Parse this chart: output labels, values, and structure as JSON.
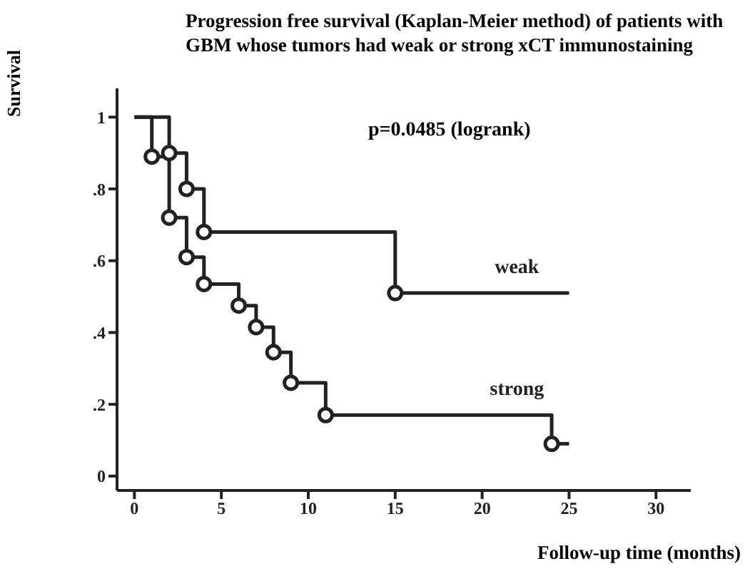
{
  "chart_data": {
    "type": "step",
    "title": "Progression free survival (Kaplan-Meier method) of patients with GBM whose tumors had weak or strong xCT immunostaining",
    "xlabel": "Follow-up time (months)",
    "ylabel": "Survival",
    "annotations": [
      "p=0.0485 (logrank)"
    ],
    "series": [
      {
        "name": "weak",
        "color": "#222222",
        "marker": "none",
        "x": [
          0,
          2,
          3,
          4,
          15,
          25
        ],
        "values": [
          1,
          0.9,
          0.8,
          0.68,
          0.51,
          0.51
        ]
      },
      {
        "name": "strong",
        "color": "#222222",
        "marker": "none",
        "x": [
          0,
          1,
          2,
          3,
          4,
          6,
          7,
          8,
          9,
          11,
          24,
          25
        ],
        "values": [
          1,
          0.89,
          0.72,
          0.61,
          0.535,
          0.475,
          0.415,
          0.345,
          0.26,
          0.17,
          0.09,
          0.09
        ]
      },
      {
        "type": "scatter",
        "color": "#222222",
        "marker": "circle",
        "x": [
          2,
          3,
          4,
          15
        ],
        "values": [
          0.9,
          0.8,
          0.68,
          0.51
        ]
      },
      {
        "type": "scatter",
        "color": "#222222",
        "marker": "circle",
        "x": [
          1,
          2,
          3,
          4,
          6,
          7,
          8,
          9,
          11,
          24
        ],
        "values": [
          0.89,
          0.72,
          0.61,
          0.535,
          0.475,
          0.415,
          0.345,
          0.26,
          0.17,
          0.09
        ]
      }
    ],
    "xlim": [
      -1,
      32
    ],
    "xticks": [
      0,
      5,
      10,
      15,
      20,
      25,
      30
    ],
    "ylim": [
      -0.04,
      1.08
    ],
    "yticks": [
      {
        "value": 0,
        "label": "0"
      },
      {
        "value": 0.2,
        "label": ".2"
      },
      {
        "value": 0.4,
        "label": ".4"
      },
      {
        "value": 0.6,
        "label": ".6"
      },
      {
        "value": 0.8,
        "label": ".8"
      },
      {
        "value": 1,
        "label": "1"
      }
    ],
    "grid": false,
    "legend": false
  }
}
